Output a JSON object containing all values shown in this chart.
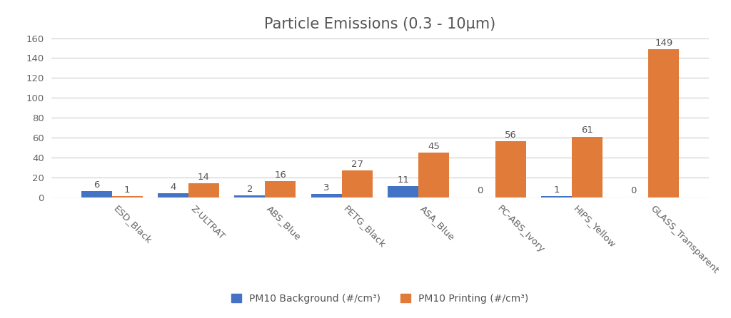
{
  "title": "Particle Emissions (0.3 - 10μm)",
  "categories": [
    "ESD_Black",
    "Z-ULTRAT",
    "ABS_Blue",
    "PETG_Black",
    "ASA_Blue",
    "PC-ABS_Ivory",
    "HIPS_Yellow",
    "GLASS_Transparent"
  ],
  "background_values": [
    6,
    4,
    2,
    3,
    11,
    0,
    1,
    0
  ],
  "printing_values": [
    1,
    14,
    16,
    27,
    45,
    56,
    61,
    149
  ],
  "background_color": "#4472C4",
  "printing_color": "#E07B39",
  "background_label": "PM10 Background (#/cm³)",
  "printing_label": "PM10 Printing (#/cm³)",
  "ylim": [
    0,
    160
  ],
  "yticks": [
    0,
    20,
    40,
    60,
    80,
    100,
    120,
    140,
    160
  ],
  "bar_width": 0.4,
  "fig_bg_color": "#FFFFFF",
  "title_fontsize": 15,
  "tick_fontsize": 9.5,
  "label_fontsize": 10,
  "annotation_fontsize": 9.5
}
